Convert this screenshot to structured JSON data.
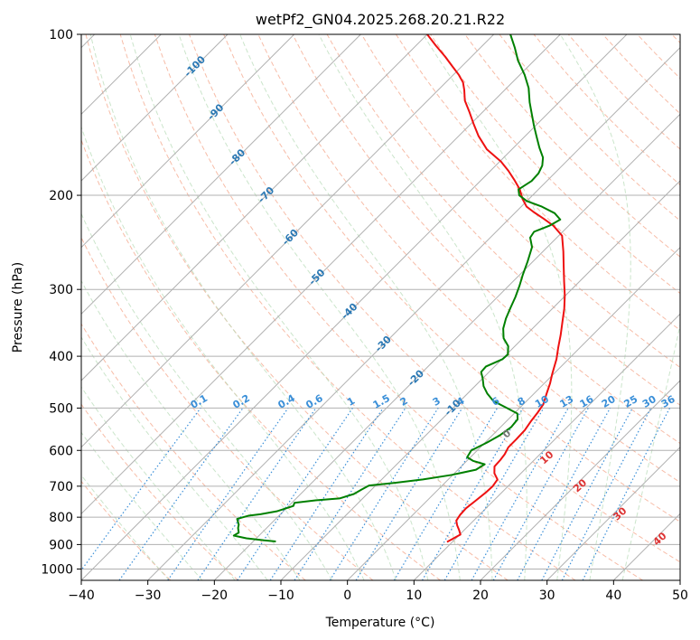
{
  "chart_data": {
    "type": "line",
    "title": "wetPf2_GN04.2025.268.20.21.R22",
    "xlabel": "Temperature (°C)",
    "ylabel": "Pressure (hPa)",
    "xlim": [
      -40,
      50
    ],
    "ylim": [
      1050,
      100
    ],
    "y_scale": "log",
    "x_ticks": [
      -40,
      -30,
      -20,
      -10,
      0,
      10,
      20,
      30,
      40,
      50
    ],
    "y_ticks": [
      100,
      200,
      300,
      400,
      500,
      600,
      700,
      800,
      900,
      1000
    ],
    "skew": 45,
    "colors": {
      "temperature": "#ee1111",
      "dewpoint": "#008000",
      "isotherm": "#b0b0b0",
      "isobar": "#b0b0b0",
      "dry_adiabat": "#f4a58a",
      "moist_adiabat": "#b9dcb9",
      "mixing_ratio": "#3a8fd8",
      "isotherm_label": "#2a78b4",
      "dry_label": "#dd3333"
    },
    "series": [
      {
        "key": "temperature",
        "points": [
          [
            9.2,
            890
          ],
          [
            9.6,
            878
          ],
          [
            10.1,
            862
          ],
          [
            9.2,
            845
          ],
          [
            8.2,
            828
          ],
          [
            7.4,
            812
          ],
          [
            7.1,
            792
          ],
          [
            7.0,
            770
          ],
          [
            7.3,
            745
          ],
          [
            7.6,
            720
          ],
          [
            7.7,
            700
          ],
          [
            7.4,
            680
          ],
          [
            6.0,
            662
          ],
          [
            5.0,
            643
          ],
          [
            4.9,
            625
          ],
          [
            4.7,
            610
          ],
          [
            4.2,
            592
          ],
          [
            4.2,
            572
          ],
          [
            4.1,
            550
          ],
          [
            3.7,
            530
          ],
          [
            3.4,
            510
          ],
          [
            3.0,
            492
          ],
          [
            1.9,
            470
          ],
          [
            0.9,
            450
          ],
          [
            -0.2,
            432
          ],
          [
            -0.9,
            420
          ],
          [
            -1.8,
            405
          ],
          [
            -3.3,
            385
          ],
          [
            -4.8,
            365
          ],
          [
            -6.5,
            345
          ],
          [
            -8.2,
            326
          ],
          [
            -10.1,
            308
          ],
          [
            -12.3,
            290
          ],
          [
            -14.6,
            272
          ],
          [
            -16.9,
            255
          ],
          [
            -19.5,
            238
          ],
          [
            -22.3,
            228
          ],
          [
            -24.9,
            221
          ],
          [
            -27.3,
            215
          ],
          [
            -29.2,
            210
          ],
          [
            -31.0,
            203
          ],
          [
            -32.8,
            195
          ],
          [
            -35.1,
            187
          ],
          [
            -37.3,
            180
          ],
          [
            -39.8,
            173
          ],
          [
            -43.8,
            164
          ],
          [
            -47.0,
            155
          ],
          [
            -49.6,
            147
          ],
          [
            -51.9,
            140
          ],
          [
            -54.4,
            133
          ],
          [
            -56.1,
            127
          ],
          [
            -57.4,
            123
          ],
          [
            -59.2,
            119
          ],
          [
            -61.3,
            115
          ],
          [
            -64.0,
            110
          ],
          [
            -67.0,
            105
          ],
          [
            -70.0,
            100
          ]
        ]
      },
      {
        "key": "dewpoint",
        "points": [
          [
            -16.6,
            888
          ],
          [
            -18.5,
            884
          ],
          [
            -21.5,
            876
          ],
          [
            -23.8,
            866
          ],
          [
            -23.5,
            855
          ],
          [
            -24.3,
            838
          ],
          [
            -24.7,
            826
          ],
          [
            -25.8,
            806
          ],
          [
            -24.6,
            795
          ],
          [
            -23.0,
            790
          ],
          [
            -21.0,
            780
          ],
          [
            -19.3,
            762
          ],
          [
            -19.6,
            752
          ],
          [
            -16.8,
            744
          ],
          [
            -13.5,
            738
          ],
          [
            -12.0,
            724
          ],
          [
            -11.5,
            710
          ],
          [
            -11.0,
            698
          ],
          [
            -7.5,
            690
          ],
          [
            -3.8,
            680
          ],
          [
            -0.2,
            667
          ],
          [
            2.7,
            652
          ],
          [
            3.2,
            637
          ],
          [
            1.0,
            628
          ],
          [
            -0.5,
            618
          ],
          [
            -0.9,
            600
          ],
          [
            0.3,
            580
          ],
          [
            1.1,
            563
          ],
          [
            1.6,
            543
          ],
          [
            1.4,
            525
          ],
          [
            0.5,
            512
          ],
          [
            -2.3,
            498
          ],
          [
            -5.0,
            485
          ],
          [
            -7.0,
            470
          ],
          [
            -8.7,
            455
          ],
          [
            -10.0,
            440
          ],
          [
            -11.2,
            428
          ],
          [
            -11.3,
            418
          ],
          [
            -9.9,
            405
          ],
          [
            -9.8,
            397
          ],
          [
            -11.0,
            383
          ],
          [
            -12.9,
            370
          ],
          [
            -14.4,
            355
          ],
          [
            -15.5,
            340
          ],
          [
            -16.4,
            325
          ],
          [
            -17.3,
            310
          ],
          [
            -18.4,
            295
          ],
          [
            -19.5,
            282
          ],
          [
            -20.8,
            266
          ],
          [
            -22.3,
            250
          ],
          [
            -24.0,
            240
          ],
          [
            -24.3,
            234
          ],
          [
            -22.9,
            228
          ],
          [
            -22.2,
            222
          ],
          [
            -24.0,
            216
          ],
          [
            -26.9,
            210
          ],
          [
            -30.0,
            205
          ],
          [
            -32.0,
            200
          ],
          [
            -33.0,
            195
          ],
          [
            -32.3,
            188
          ],
          [
            -32.4,
            182
          ],
          [
            -33.0,
            176
          ],
          [
            -34.1,
            170
          ],
          [
            -36.1,
            163
          ],
          [
            -38.3,
            155
          ],
          [
            -40.3,
            148
          ],
          [
            -42.3,
            141
          ],
          [
            -44.4,
            134
          ],
          [
            -46.7,
            126
          ],
          [
            -49.3,
            119
          ],
          [
            -52.4,
            112
          ],
          [
            -54.8,
            106
          ],
          [
            -57.5,
            100
          ]
        ]
      }
    ],
    "isotherm_labels": [
      -100,
      -90,
      -80,
      -70,
      -60,
      -50,
      -40,
      -30,
      -20,
      -10
    ],
    "mixing_ratio_labels": [
      "0.1",
      "0.2",
      "0.4",
      "0.6",
      "1",
      "1.5",
      "2",
      "3",
      "4",
      "6",
      "8",
      "10",
      "13",
      "16",
      "20",
      "25",
      "30",
      "36"
    ],
    "dry_adiabat_labels": [
      "0",
      "10",
      "20",
      "30",
      "40"
    ]
  }
}
